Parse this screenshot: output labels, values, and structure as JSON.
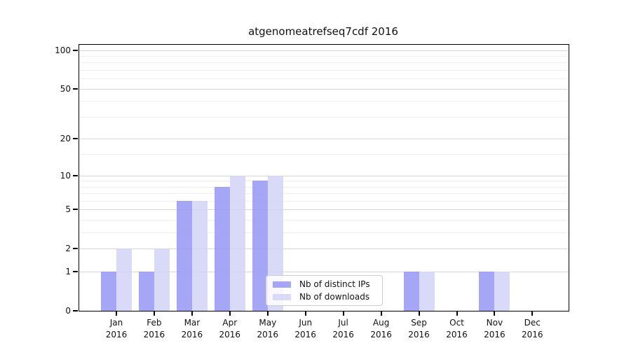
{
  "figure": {
    "title": "atgenomeatrefseq7cdf 2016"
  },
  "chart_data": {
    "type": "bar",
    "title": "atgenomeatrefseq7cdf 2016",
    "categories": [
      "Jan 2016",
      "Feb 2016",
      "Mar 2016",
      "Apr 2016",
      "May 2016",
      "Jun 2016",
      "Jul 2016",
      "Aug 2016",
      "Sep 2016",
      "Oct 2016",
      "Nov 2016",
      "Dec 2016"
    ],
    "series": [
      {
        "name": "Nb of distinct IPs",
        "color": "#9696f6",
        "values": [
          1,
          1,
          6,
          8,
          9,
          0,
          0,
          0,
          1,
          0,
          1,
          0
        ]
      },
      {
        "name": "Nb of downloads",
        "color": "#d2d2f7",
        "values": [
          2,
          2,
          6,
          10,
          10,
          0,
          0,
          0,
          1,
          0,
          1,
          0
        ]
      }
    ],
    "bar_alpha": 0.85,
    "xlabel": "",
    "ylabel": "",
    "yscale": "log1p",
    "ylim": [
      0,
      110
    ],
    "yticks": [
      0,
      1,
      2,
      5,
      10,
      20,
      50,
      100
    ],
    "minor_yticks": [
      3,
      4,
      6,
      7,
      8,
      9,
      15,
      30,
      40,
      60,
      70,
      80,
      90
    ],
    "grid": "horizontal major+minor, light gray",
    "legend": {
      "position": "lower-center-inside",
      "labels": [
        "Nb of distinct IPs",
        "Nb of downloads"
      ]
    }
  }
}
